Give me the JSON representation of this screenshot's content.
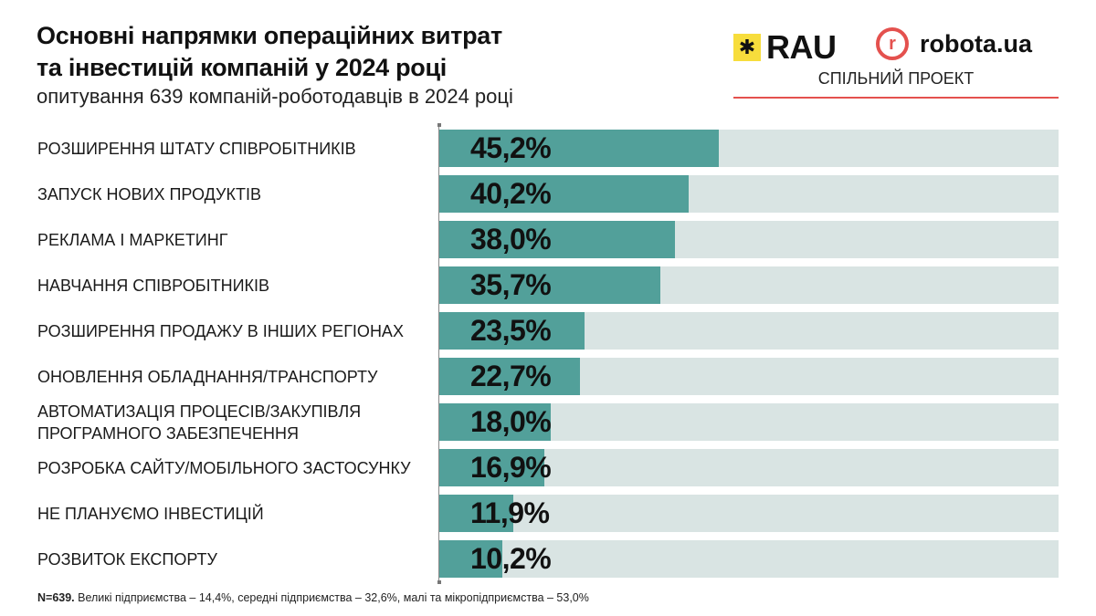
{
  "header": {
    "title_line1": "Основні напрямки операційних витрат",
    "title_line2": "та інвестицій компаній у 2024 році",
    "subtitle": "опитування 639 компаній-роботодавців в 2024 році"
  },
  "logos": {
    "rau_text": "RAU",
    "robota_mark": "r",
    "robota_text": "robota.ua",
    "joint_project": "СПІЛЬНИЙ ПРОЕКТ"
  },
  "footnote": {
    "bold": "N=639.",
    "text": " Великі підприємства – 14,4%, середні підприємства – 32,6%, малі та мікропідприємства – 53,0%"
  },
  "colors": {
    "bar_fill": "#52a09a",
    "bar_track": "#d9e4e3",
    "accent_red": "#e4514e",
    "rau_yellow": "#f7dd3c"
  },
  "chart_data": {
    "type": "bar",
    "orientation": "horizontal",
    "title": "Основні напрямки операційних витрат та інвестицій компаній у 2024 році",
    "subtitle": "опитування 639 компаній-роботодавців в 2024 році",
    "xlim": [
      0,
      100
    ],
    "unit": "%",
    "grid": false,
    "categories": [
      [
        "РОЗШИРЕННЯ ШТАТУ СПІВРОБІТНИКІВ"
      ],
      [
        "ЗАПУСК НОВИХ ПРОДУКТІВ"
      ],
      [
        "РЕКЛАМА І МАРКЕТИНГ"
      ],
      [
        "НАВЧАННЯ СПІВРОБІТНИКІВ"
      ],
      [
        "РОЗШИРЕННЯ ПРОДАЖУ В ІНШИХ РЕГІОНАХ"
      ],
      [
        "ОНОВЛЕННЯ ОБЛАДНАННЯ/ТРАНСПОРТУ"
      ],
      [
        "АВТОМАТИЗАЦІЯ ПРОЦЕСІВ/ЗАКУПІВЛЯ",
        "ПРОГРАМНОГО ЗАБЕЗПЕЧЕННЯ"
      ],
      [
        "РОЗРОБКА САЙТУ/МОБІЛЬНОГО ЗАСТОСУНКУ"
      ],
      [
        "НЕ ПЛАНУЄМО ІНВЕСТИЦІЙ"
      ],
      [
        "РОЗВИТОК ЕКСПОРТУ"
      ]
    ],
    "values": [
      45.2,
      40.2,
      38.0,
      35.7,
      23.5,
      22.7,
      18.0,
      16.9,
      11.9,
      10.2
    ],
    "value_labels": [
      "45,2%",
      "40,2%",
      "38,0%",
      "35,7%",
      "23,5%",
      "22,7%",
      "18,0%",
      "16,9%",
      "11,9%",
      "10,2%"
    ]
  }
}
